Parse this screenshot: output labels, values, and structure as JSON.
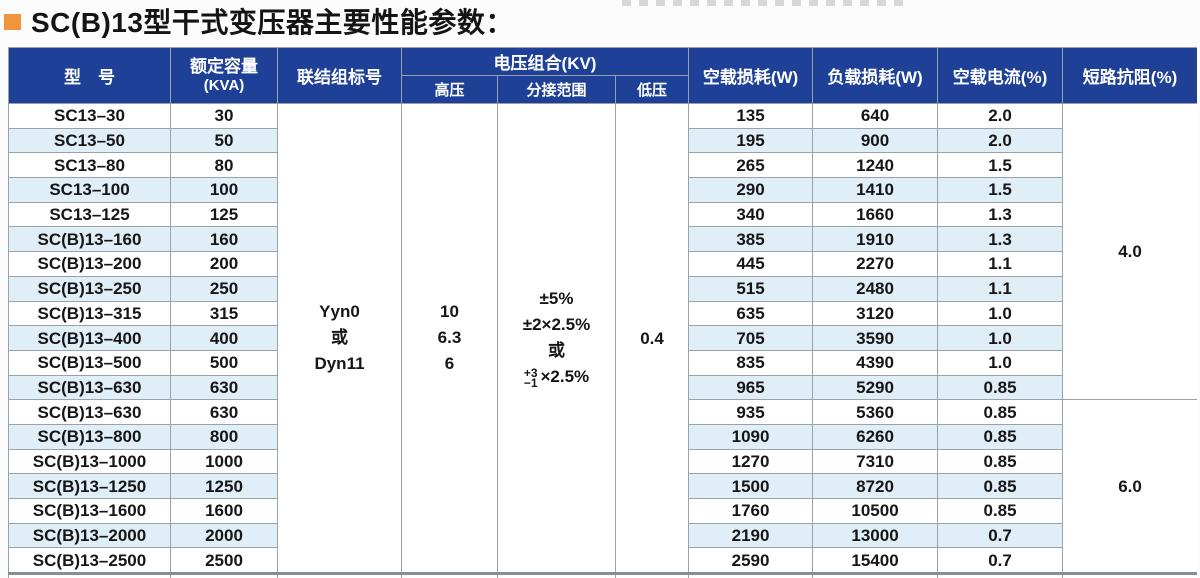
{
  "title": {
    "text": "SC(B)13型干式变压器主要性能参数："
  },
  "colors": {
    "header_blue": "#1e4096",
    "stripe_blue": "#e0eef8",
    "border_gray": "#99a1a9",
    "thick_line_gray": "#868d93",
    "bullet_orange": "#f0953e",
    "header_text": "#ffffff",
    "body_text": "#161616"
  },
  "table": {
    "headers": {
      "model": "型　号",
      "rated_capacity_line1": "额定容量",
      "rated_capacity_line2": "(KVA)",
      "vector_group": "联结组标号",
      "voltage_combination": "电压组合(KV)",
      "hv": "高压",
      "tap_range": "分接范围",
      "lv": "低压",
      "no_load_loss": "空载损耗(W)",
      "load_loss": "负载损耗(W)",
      "no_load_current": "空载电流(%)",
      "short_circuit_impedance": "短路抗阻(%)"
    },
    "merged": {
      "vector_group_lines": [
        "Yyn0",
        "或",
        "Dyn11"
      ],
      "hv_lines": [
        "10",
        "6.3",
        "6"
      ],
      "tap_lines": [
        "±5%",
        "±2×2.5%",
        "或"
      ],
      "tap_stacked_top": "+3",
      "tap_stacked_bottom": "−1",
      "tap_stacked_suffix": "×2.5%",
      "lv_value": "0.4",
      "impedance_group1": "4.0",
      "impedance_group1_rowspan": 12,
      "impedance_group2": "6.0",
      "impedance_group2_rowspan": 7
    },
    "rows": [
      [
        "SC13–30",
        "30",
        "135",
        "640",
        "2.0"
      ],
      [
        "SC13–50",
        "50",
        "195",
        "900",
        "2.0"
      ],
      [
        "SC13–80",
        "80",
        "265",
        "1240",
        "1.5"
      ],
      [
        "SC13–100",
        "100",
        "290",
        "1410",
        "1.5"
      ],
      [
        "SC13–125",
        "125",
        "340",
        "1660",
        "1.3"
      ],
      [
        "SC(B)13–160",
        "160",
        "385",
        "1910",
        "1.3"
      ],
      [
        "SC(B)13–200",
        "200",
        "445",
        "2270",
        "1.1"
      ],
      [
        "SC(B)13–250",
        "250",
        "515",
        "2480",
        "1.1"
      ],
      [
        "SC(B)13–315",
        "315",
        "635",
        "3120",
        "1.0"
      ],
      [
        "SC(B)13–400",
        "400",
        "705",
        "3590",
        "1.0"
      ],
      [
        "SC(B)13–500",
        "500",
        "835",
        "4390",
        "1.0"
      ],
      [
        "SC(B)13–630",
        "630",
        "965",
        "5290",
        "0.85"
      ],
      [
        "SC(B)13–630",
        "630",
        "935",
        "5360",
        "0.85"
      ],
      [
        "SC(B)13–800",
        "800",
        "1090",
        "6260",
        "0.85"
      ],
      [
        "SC(B)13–1000",
        "1000",
        "1270",
        "7310",
        "0.85"
      ],
      [
        "SC(B)13–1250",
        "1250",
        "1500",
        "8720",
        "0.85"
      ],
      [
        "SC(B)13–1600",
        "1600",
        "1760",
        "10500",
        "0.85"
      ],
      [
        "SC(B)13–2000",
        "2000",
        "2190",
        "13000",
        "0.7"
      ],
      [
        "SC(B)13–2500",
        "2500",
        "2590",
        "15400",
        "0.7"
      ]
    ]
  }
}
